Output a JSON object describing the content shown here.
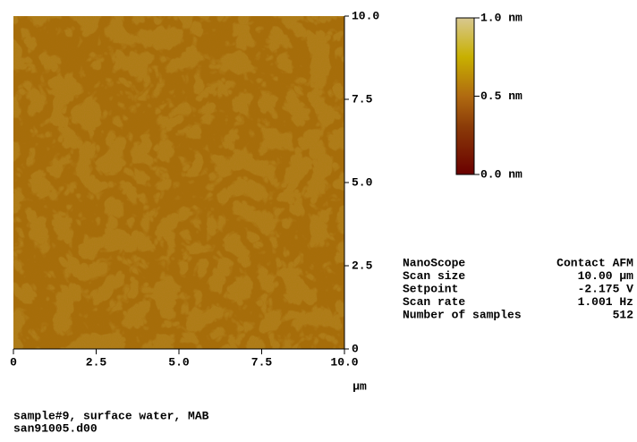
{
  "image": {
    "x_ticks": [
      "0",
      "2.5",
      "5.0",
      "7.5",
      "10.0"
    ],
    "y_ticks": [
      "10.0",
      "7.5",
      "5.0",
      "2.5",
      "0"
    ],
    "x_unit": "µm"
  },
  "colorbar": {
    "labels": [
      "1.0 nm",
      "0.5 nm",
      "0.0 nm"
    ]
  },
  "info": {
    "rows": [
      [
        "NanoScope",
        "Contact AFM"
      ],
      [
        "Scan size",
        "10.00 µm"
      ],
      [
        "Setpoint",
        "-2.175 V"
      ],
      [
        "Scan rate",
        "1.001 Hz"
      ],
      [
        "Number of samples",
        "512"
      ]
    ]
  },
  "caption": [
    "sample#9, surface water, MAB",
    "san91005.d00"
  ]
}
